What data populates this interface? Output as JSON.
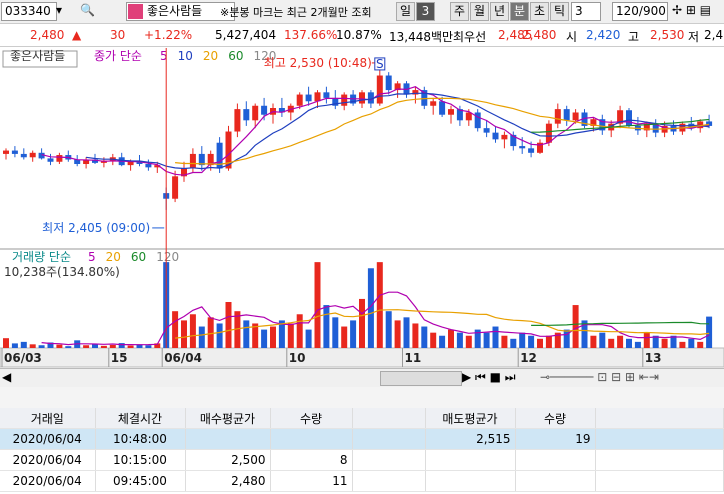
{
  "toolbar": {
    "code": "033340",
    "name": "좋은사람들",
    "notice": "※분봉 마크는 최근 2개월만 조회",
    "period_buttons": [
      "일",
      "3",
      "주",
      "월",
      "년",
      "분",
      "초",
      "틱"
    ],
    "interval": "3",
    "count": "120/900"
  },
  "quote": {
    "price": "2,480",
    "arrow": "▲",
    "change": "30",
    "change_pct": "+1.22%",
    "volume": "5,427,404",
    "vol_ratio": "137.66%",
    "turnover": "10.87%",
    "amount": "13,448백만",
    "best_label": "최우선",
    "ask": "2,485",
    "bid": "2,480",
    "open_label": "시",
    "open": "2,420",
    "high_label": "고",
    "high": "2,530",
    "low_label": "저",
    "low": "2,4"
  },
  "chart_data": {
    "type": "candlestick",
    "legend_name": "좋은사람들",
    "ma_label": "종가 단순",
    "ma": [
      {
        "period": 5,
        "color": "#b000b0"
      },
      {
        "period": 10,
        "color": "#1f3fbf"
      },
      {
        "period": 20,
        "color": "#e8a000"
      },
      {
        "period": 60,
        "color": "#1a8a2a"
      },
      {
        "period": 120,
        "color": "#888888"
      }
    ],
    "high_annotation": "최고 2,530 (10:48)",
    "low_annotation": "최저 2,405 (09:00)",
    "marker": "S",
    "up_color": "#e8281e",
    "down_color": "#1f5fd6",
    "ylim": [
      2371,
      2546
    ],
    "categories": [
      "06/03",
      null,
      null,
      null,
      null,
      null,
      null,
      null,
      null,
      null,
      null,
      null,
      "15",
      null,
      null,
      null,
      null,
      null,
      "06/04",
      null,
      null,
      null,
      null,
      null,
      null,
      null,
      null,
      null,
      null,
      null,
      null,
      null,
      "10",
      null,
      null,
      null,
      null,
      null,
      null,
      null,
      null,
      null,
      null,
      null,
      null,
      "11",
      null,
      null,
      null,
      null,
      null,
      null,
      null,
      null,
      null,
      null,
      null,
      null,
      "12",
      null,
      null,
      null,
      null,
      null,
      null,
      null,
      null,
      null,
      null,
      null,
      null,
      null,
      "13",
      null,
      null,
      null,
      null,
      null,
      null,
      null
    ],
    "ohlc": [
      [
        2455,
        2460,
        2450,
        2458
      ],
      [
        2458,
        2462,
        2452,
        2455
      ],
      [
        2455,
        2460,
        2450,
        2452
      ],
      [
        2452,
        2458,
        2448,
        2456
      ],
      [
        2456,
        2460,
        2450,
        2451
      ],
      [
        2451,
        2455,
        2445,
        2448
      ],
      [
        2448,
        2456,
        2446,
        2454
      ],
      [
        2454,
        2458,
        2448,
        2450
      ],
      [
        2450,
        2454,
        2444,
        2446
      ],
      [
        2446,
        2452,
        2442,
        2450
      ],
      [
        2450,
        2455,
        2446,
        2447
      ],
      [
        2447,
        2452,
        2443,
        2449
      ],
      [
        2449,
        2455,
        2445,
        2452
      ],
      [
        2452,
        2456,
        2444,
        2445
      ],
      [
        2445,
        2450,
        2440,
        2448
      ],
      [
        2448,
        2454,
        2444,
        2446
      ],
      [
        2446,
        2450,
        2440,
        2443
      ],
      [
        2443,
        2448,
        2438,
        2445
      ],
      [
        2420,
        2425,
        2405,
        2415
      ],
      [
        2415,
        2440,
        2412,
        2435
      ],
      [
        2435,
        2448,
        2430,
        2442
      ],
      [
        2442,
        2460,
        2438,
        2455
      ],
      [
        2455,
        2462,
        2440,
        2445
      ],
      [
        2445,
        2458,
        2440,
        2455
      ],
      [
        2465,
        2470,
        2438,
        2442
      ],
      [
        2442,
        2480,
        2440,
        2475
      ],
      [
        2475,
        2500,
        2470,
        2495
      ],
      [
        2495,
        2502,
        2480,
        2485
      ],
      [
        2485,
        2500,
        2478,
        2498
      ],
      [
        2498,
        2505,
        2485,
        2490
      ],
      [
        2490,
        2500,
        2482,
        2496
      ],
      [
        2496,
        2505,
        2488,
        2492
      ],
      [
        2492,
        2500,
        2485,
        2498
      ],
      [
        2498,
        2510,
        2495,
        2508
      ],
      [
        2508,
        2515,
        2498,
        2502
      ],
      [
        2502,
        2512,
        2496,
        2510
      ],
      [
        2510,
        2515,
        2500,
        2505
      ],
      [
        2505,
        2512,
        2495,
        2498
      ],
      [
        2498,
        2510,
        2494,
        2508
      ],
      [
        2508,
        2512,
        2498,
        2500
      ],
      [
        2500,
        2512,
        2496,
        2510
      ],
      [
        2510,
        2512,
        2496,
        2500
      ],
      [
        2500,
        2530,
        2498,
        2525
      ],
      [
        2525,
        2528,
        2508,
        2512
      ],
      [
        2512,
        2520,
        2505,
        2518
      ],
      [
        2518,
        2520,
        2505,
        2508
      ],
      [
        2508,
        2515,
        2500,
        2512
      ],
      [
        2512,
        2515,
        2495,
        2498
      ],
      [
        2498,
        2505,
        2490,
        2502
      ],
      [
        2502,
        2506,
        2488,
        2490
      ],
      [
        2490,
        2498,
        2482,
        2495
      ],
      [
        2495,
        2498,
        2480,
        2485
      ],
      [
        2485,
        2495,
        2480,
        2492
      ],
      [
        2492,
        2495,
        2475,
        2478
      ],
      [
        2478,
        2485,
        2470,
        2474
      ],
      [
        2474,
        2480,
        2465,
        2468
      ],
      [
        2468,
        2475,
        2460,
        2472
      ],
      [
        2472,
        2475,
        2458,
        2462
      ],
      [
        2462,
        2470,
        2455,
        2460
      ],
      [
        2460,
        2466,
        2452,
        2456
      ],
      [
        2456,
        2468,
        2455,
        2465
      ],
      [
        2465,
        2485,
        2462,
        2482
      ],
      [
        2482,
        2500,
        2478,
        2495
      ],
      [
        2495,
        2498,
        2480,
        2485
      ],
      [
        2485,
        2495,
        2482,
        2492
      ],
      [
        2492,
        2495,
        2478,
        2480
      ],
      [
        2480,
        2488,
        2475,
        2486
      ],
      [
        2486,
        2490,
        2472,
        2476
      ],
      [
        2476,
        2485,
        2470,
        2482
      ],
      [
        2482,
        2498,
        2478,
        2494
      ],
      [
        2494,
        2496,
        2478,
        2480
      ],
      [
        2480,
        2488,
        2472,
        2476
      ],
      [
        2476,
        2484,
        2470,
        2482
      ],
      [
        2482,
        2486,
        2470,
        2474
      ],
      [
        2474,
        2484,
        2470,
        2480
      ],
      [
        2480,
        2485,
        2472,
        2475
      ],
      [
        2475,
        2484,
        2472,
        2482
      ],
      [
        2482,
        2488,
        2476,
        2478
      ],
      [
        2478,
        2486,
        2474,
        2484
      ],
      [
        2484,
        2490,
        2478,
        2480
      ]
    ],
    "volume": {
      "label": "거래량 단순",
      "summary": "10,238주(134.80%)",
      "ylim": [
        0,
        30000
      ],
      "ma": [
        {
          "period": 5,
          "color": "#b000b0"
        },
        {
          "period": 20,
          "color": "#e8a000"
        },
        {
          "period": 60,
          "color": "#1a8a2a"
        },
        {
          "period": 120,
          "color": "#888888"
        }
      ],
      "values": [
        3200,
        1500,
        2000,
        1200,
        900,
        1800,
        1100,
        600,
        2500,
        900,
        1400,
        700,
        1000,
        1600,
        800,
        1200,
        900,
        1500,
        28000,
        12000,
        9000,
        11000,
        7000,
        10000,
        8000,
        15000,
        12000,
        9000,
        8000,
        6000,
        7000,
        9000,
        8000,
        11000,
        6000,
        28000,
        14000,
        10000,
        7000,
        9000,
        16000,
        26000,
        28000,
        12000,
        9000,
        10000,
        8000,
        7000,
        5000,
        4000,
        6000,
        5000,
        4000,
        6000,
        5000,
        7000,
        4000,
        3000,
        5000,
        4000,
        3000,
        4000,
        5000,
        6000,
        14000,
        9000,
        4000,
        5000,
        3000,
        4000,
        3000,
        2000,
        5000,
        4000,
        3000,
        4000,
        2000,
        3000,
        2000,
        10238
      ]
    }
  },
  "table": {
    "headers": [
      "거래일",
      "체결시간",
      "매수평균가",
      "수량",
      "매도평균가",
      "수량"
    ],
    "rows": [
      [
        "2020/06/04",
        "10:48:00",
        null,
        null,
        "2,515",
        "19"
      ],
      [
        "2020/06/04",
        "10:15:00",
        "2,500",
        "8",
        null,
        null
      ],
      [
        "2020/06/04",
        "09:45:00",
        "2,480",
        "11",
        null,
        null
      ]
    ]
  }
}
